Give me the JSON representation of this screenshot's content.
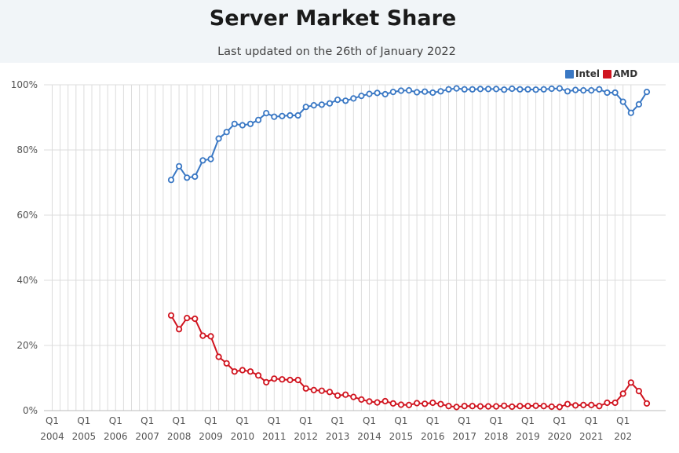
{
  "header": {
    "title": "Server Market Share",
    "subtitle": "Last updated on the 26th of January 2022"
  },
  "chart_data": {
    "type": "line",
    "title": "Server Market Share",
    "subtitle": "Last updated on the 26th of January 2022",
    "xlabel": "",
    "ylabel": "",
    "ylim": [
      0,
      100
    ],
    "yticks": [
      "0%",
      "20%",
      "40%",
      "60%",
      "80%",
      "100%"
    ],
    "x_quarter_start": "2004 Q1",
    "x_quarter_end": "2022 Q1",
    "x_ticks": [
      {
        "q": "Q1",
        "year": "2004"
      },
      {
        "q": "Q1",
        "year": "2005"
      },
      {
        "q": "Q1",
        "year": "2006"
      },
      {
        "q": "Q1",
        "year": "2007"
      },
      {
        "q": "Q1",
        "year": "2008"
      },
      {
        "q": "Q1",
        "year": "2009"
      },
      {
        "q": "Q1",
        "year": "2010"
      },
      {
        "q": "Q1",
        "year": "2011"
      },
      {
        "q": "Q1",
        "year": "2012"
      },
      {
        "q": "Q1",
        "year": "2013"
      },
      {
        "q": "Q1",
        "year": "2014"
      },
      {
        "q": "Q1",
        "year": "2015"
      },
      {
        "q": "Q1",
        "year": "2016"
      },
      {
        "q": "Q1",
        "year": "2017"
      },
      {
        "q": "Q1",
        "year": "2018"
      },
      {
        "q": "Q1",
        "year": "2019"
      },
      {
        "q": "Q1",
        "year": "2020"
      },
      {
        "q": "Q1",
        "year": "2021"
      },
      {
        "q": "Q1",
        "year": "202"
      }
    ],
    "series_start": "2007 Q4",
    "grid": true,
    "legend_position": "top-right",
    "series": [
      {
        "name": "Intel",
        "color": "#3a78c4",
        "values": [
          70.8,
          75.0,
          71.5,
          71.8,
          76.8,
          77.2,
          83.5,
          85.5,
          88.0,
          87.6,
          88.0,
          89.2,
          91.3,
          90.2,
          90.4,
          90.6,
          90.6,
          93.2,
          93.7,
          93.9,
          94.3,
          95.4,
          95.1,
          95.8,
          96.6,
          97.2,
          97.5,
          97.1,
          97.8,
          98.2,
          98.3,
          97.7,
          97.9,
          97.6,
          98.0,
          98.6,
          98.9,
          98.6,
          98.6,
          98.7,
          98.7,
          98.7,
          98.5,
          98.8,
          98.6,
          98.6,
          98.5,
          98.6,
          98.8,
          98.9,
          98.0,
          98.4,
          98.3,
          98.3,
          98.6,
          97.6,
          97.6,
          94.8,
          91.4,
          94.0,
          97.8
        ]
      },
      {
        "name": "AMD",
        "color": "#d0141f",
        "values": [
          29.2,
          25.0,
          28.4,
          28.2,
          23.0,
          22.8,
          16.5,
          14.5,
          12.0,
          12.4,
          12.0,
          10.8,
          8.7,
          9.8,
          9.6,
          9.4,
          9.4,
          6.8,
          6.3,
          6.1,
          5.7,
          4.6,
          4.9,
          4.2,
          3.4,
          2.8,
          2.5,
          2.9,
          2.2,
          1.8,
          1.7,
          2.3,
          2.1,
          2.4,
          2.0,
          1.4,
          1.1,
          1.4,
          1.4,
          1.3,
          1.3,
          1.3,
          1.5,
          1.2,
          1.4,
          1.4,
          1.5,
          1.4,
          1.2,
          1.1,
          2.0,
          1.6,
          1.7,
          1.7,
          1.4,
          2.4,
          2.4,
          5.2,
          8.6,
          6.0,
          2.2
        ]
      }
    ]
  }
}
